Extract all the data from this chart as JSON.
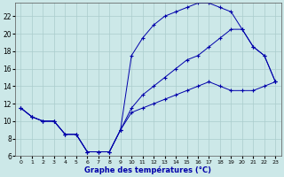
{
  "xlabel": "Graphe des températures (°C)",
  "bg_color": "#cce8e8",
  "grid_color": "#aacccc",
  "line_color": "#0000aa",
  "xlim": [
    -0.5,
    23.5
  ],
  "ylim": [
    6,
    23.5
  ],
  "yticks": [
    6,
    8,
    10,
    12,
    14,
    16,
    18,
    20,
    22
  ],
  "xticks": [
    0,
    1,
    2,
    3,
    4,
    5,
    6,
    7,
    8,
    9,
    10,
    11,
    12,
    13,
    14,
    15,
    16,
    17,
    18,
    19,
    20,
    21,
    22,
    23
  ],
  "line_top_x": [
    0,
    1,
    2,
    3,
    4,
    5,
    6,
    7,
    8,
    9,
    10,
    11,
    12,
    13,
    14,
    15,
    16,
    17,
    18,
    19,
    20,
    21,
    22,
    23
  ],
  "line_top_y": [
    11.5,
    10.5,
    10.0,
    10.0,
    8.5,
    8.5,
    6.5,
    6.5,
    6.5,
    9.0,
    17.5,
    19.5,
    21.0,
    22.0,
    22.5,
    23.0,
    23.5,
    23.5,
    23.0,
    22.5,
    20.5,
    18.5,
    17.5,
    14.5
  ],
  "line_mid_x": [
    0,
    1,
    2,
    3,
    4,
    5,
    6,
    7,
    8,
    9,
    10,
    11,
    12,
    13,
    14,
    15,
    16,
    17,
    18,
    19,
    20,
    21,
    22,
    23
  ],
  "line_mid_y": [
    11.5,
    10.5,
    10.0,
    10.0,
    8.5,
    8.5,
    6.5,
    6.5,
    6.5,
    9.0,
    11.5,
    13.0,
    14.0,
    15.0,
    16.0,
    17.0,
    17.5,
    18.5,
    19.5,
    20.5,
    20.5,
    18.5,
    17.5,
    14.5
  ],
  "line_bot_x": [
    0,
    1,
    2,
    3,
    4,
    5,
    6,
    7,
    8,
    9,
    10,
    11,
    12,
    13,
    14,
    15,
    16,
    17,
    18,
    19,
    20,
    21,
    22,
    23
  ],
  "line_bot_y": [
    11.5,
    10.5,
    10.0,
    10.0,
    8.5,
    8.5,
    6.5,
    6.5,
    6.5,
    9.0,
    11.0,
    11.5,
    12.0,
    12.5,
    13.0,
    13.5,
    14.0,
    14.5,
    14.0,
    13.5,
    13.5,
    13.5,
    14.0,
    14.5
  ]
}
